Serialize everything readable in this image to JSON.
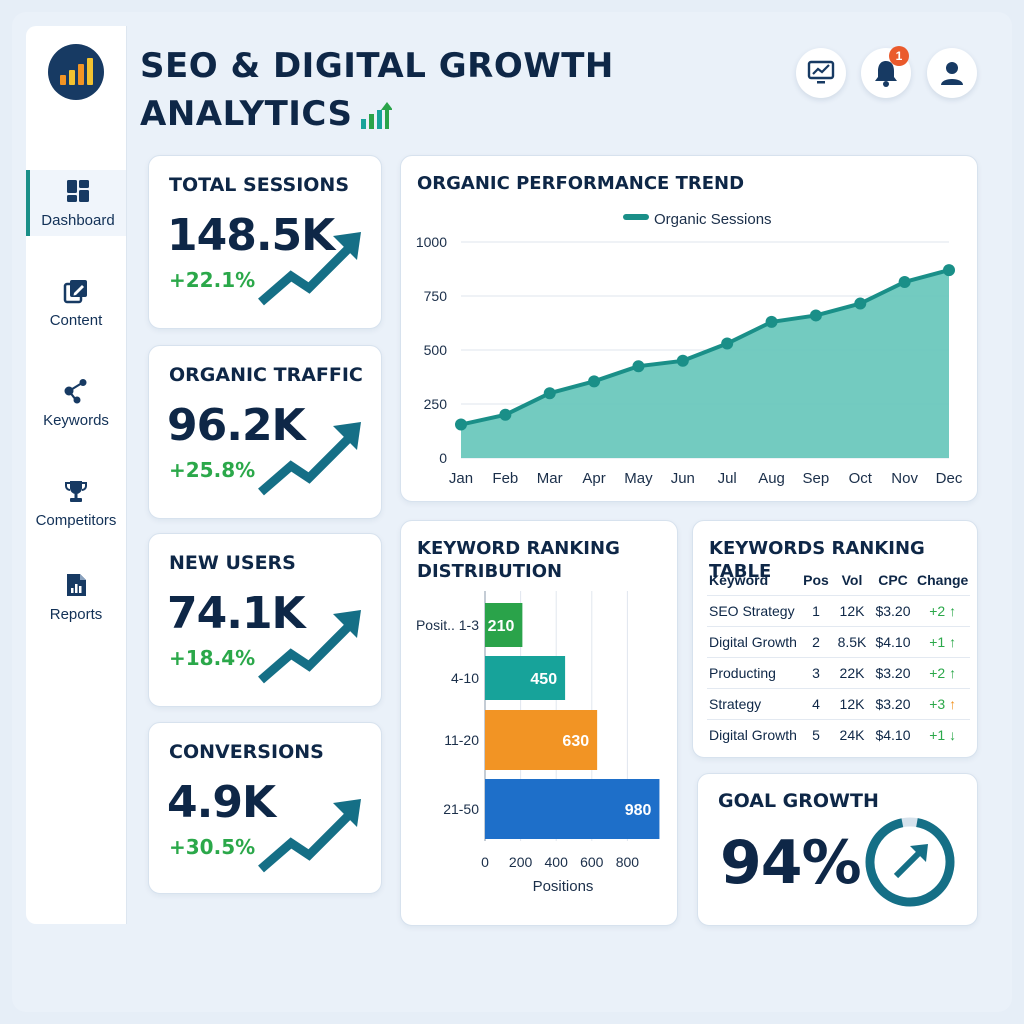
{
  "app": {
    "title_line1": "SEO & DIGITAL GROWTH",
    "title_line2": "ANALYTICS"
  },
  "header": {
    "notification_count": "1"
  },
  "sidebar": {
    "items": [
      {
        "label": "Dashboard",
        "icon": "dashboard-icon",
        "active": true
      },
      {
        "label": "Content",
        "icon": "edit-icon"
      },
      {
        "label": "Keywords",
        "icon": "network-icon"
      },
      {
        "label": "Competitors",
        "icon": "trophy-icon"
      },
      {
        "label": "Reports",
        "icon": "report-icon"
      }
    ]
  },
  "kpis": [
    {
      "label": "TOTAL SESSIONS",
      "value": "148.5K",
      "delta": "+22.1%"
    },
    {
      "label": "ORGANIC TRAFFIC",
      "value": "96.2K",
      "delta": "+25.8%"
    },
    {
      "label": "NEW USERS",
      "value": "74.1K",
      "delta": "+18.4%"
    },
    {
      "label": "CONVERSIONS",
      "value": "4.9K",
      "delta": "+30.5%"
    }
  ],
  "colors": {
    "accent": "#1a8f88",
    "navy": "#0e2747",
    "positive": "#2ba84a",
    "area_fill": "#6cc8bd",
    "bar_green": "#2aa34a",
    "bar_teal": "#17a39a",
    "bar_orange": "#f29424",
    "bar_blue": "#1e6fc9",
    "notification": "#ea5a2c"
  },
  "chart_data": [
    {
      "type": "area",
      "title": "ORGANIC PERFORMANCE TREND",
      "legend_position": "top-center",
      "grid": true,
      "categories": [
        "Jan",
        "Feb",
        "Mar",
        "Apr",
        "May",
        "Jun",
        "Jul",
        "Aug",
        "Sep",
        "Oct",
        "Nov",
        "Dec"
      ],
      "series": [
        {
          "name": "Organic Sessions",
          "values": [
            155,
            200,
            300,
            355,
            425,
            450,
            530,
            630,
            660,
            715,
            815,
            870
          ]
        }
      ],
      "yticks": [
        "0",
        "250",
        "500",
        "750",
        "1000"
      ],
      "ylim": [
        0,
        1000
      ]
    },
    {
      "type": "bar",
      "orientation": "horizontal",
      "title": "KEYWORD RANKING DISTRIBUTION",
      "categories": [
        "Posit.. 1-3",
        "4-10",
        "11-20",
        "21-50"
      ],
      "values": [
        210,
        450,
        630,
        980
      ],
      "xlabel": "Positions",
      "xticks": [
        "0",
        "200",
        "400",
        "600",
        "800"
      ],
      "xlim": [
        0,
        1000
      ]
    }
  ],
  "keyword_table": {
    "title": "KEYWORDS RANKING TABLE",
    "columns": [
      "Keyword",
      "Pos",
      "Vol",
      "CPC",
      "Change"
    ],
    "rows": [
      {
        "keyword": "SEO Strategy",
        "pos": "1",
        "vol": "12K",
        "cpc": "$3.20",
        "change": "+2",
        "trend": "up",
        "trend_color": "#2ba84a"
      },
      {
        "keyword": "Digital Growth",
        "pos": "2",
        "vol": "8.5K",
        "cpc": "$4.10",
        "change": "+1",
        "trend": "up",
        "trend_color": "#2ba84a"
      },
      {
        "keyword": "Producting",
        "pos": "3",
        "vol": "22K",
        "cpc": "$3.20",
        "change": "+2",
        "trend": "up",
        "trend_color": "#2ba84a"
      },
      {
        "keyword": "Strategy",
        "pos": "4",
        "vol": "12K",
        "cpc": "$3.20",
        "change": "+3",
        "trend": "up",
        "trend_color": "#f29424"
      },
      {
        "keyword": "Digital Growth",
        "pos": "5",
        "vol": "24K",
        "cpc": "$4.10",
        "change": "+1",
        "trend": "down",
        "trend_color": "#2ba84a"
      }
    ]
  },
  "goal": {
    "label": "GOAL GROWTH",
    "value": "94%",
    "progress": 0.94
  }
}
